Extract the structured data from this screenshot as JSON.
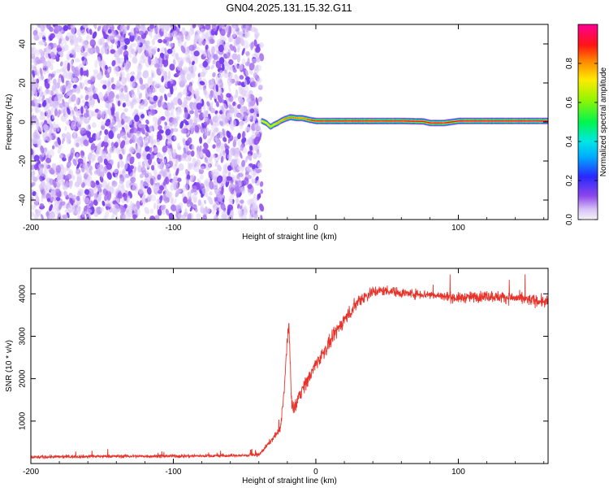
{
  "title": "GN04.2025.131.15.32.G11",
  "colors": {
    "snr_line": "#e8332a",
    "axis": "#000000",
    "scatter_dots": "#7a1fe8"
  },
  "chart_data": [
    {
      "type": "heatmap",
      "xlabel": "Height of straight line (km)",
      "ylabel": "Frequency (Hz)",
      "xlim": [
        -200,
        163
      ],
      "ylim": [
        -50,
        50
      ],
      "x_ticks": [
        -200,
        -100,
        0,
        100
      ],
      "x_tick_labels": [
        "-200",
        "-100",
        "0",
        "100"
      ],
      "y_ticks": [
        -40,
        -20,
        0,
        20,
        40
      ],
      "y_tick_labels": [
        "-40",
        "-20",
        "0",
        "20",
        "40"
      ],
      "noise_region_x": [
        -200,
        -38
      ],
      "signal_track": {
        "x": [
          -38,
          -35,
          -32,
          -30,
          -27,
          -25,
          -22,
          -18,
          -14,
          -10,
          -7,
          -4,
          0,
          20,
          40,
          60,
          75,
          80,
          90,
          100,
          120,
          140,
          163
        ],
        "freq": [
          0.5,
          -0.5,
          -2.5,
          -1.5,
          -0.5,
          0.5,
          1.5,
          2.5,
          2.0,
          2.0,
          1.5,
          1.0,
          0.5,
          0.5,
          0.5,
          0.5,
          0.3,
          -0.5,
          -0.5,
          0.5,
          0.5,
          0.5,
          0.5
        ],
        "amplitude": [
          0.7,
          0.75,
          0.7,
          0.75,
          0.8,
          0.8,
          0.85,
          0.85,
          0.85,
          0.85,
          0.85,
          0.9,
          0.95,
          0.95,
          0.95,
          0.95,
          0.95,
          0.95,
          0.95,
          0.97,
          0.97,
          0.97,
          0.97
        ]
      },
      "colorbar": {
        "label": "Normalized spectral amplitude",
        "range": [
          0,
          1
        ],
        "ticks": [
          0.0,
          0.2,
          0.4,
          0.6,
          0.8
        ],
        "tick_labels": [
          "0.0",
          "0.2",
          "0.4",
          "0.6",
          "0.8"
        ]
      }
    },
    {
      "type": "line",
      "xlabel": "Height of straight line (km)",
      "ylabel": "SNR (10 * v/v)",
      "xlim": [
        -200,
        163
      ],
      "ylim": [
        0,
        4600
      ],
      "x_ticks": [
        -200,
        -100,
        0,
        100
      ],
      "x_tick_labels": [
        "-200",
        "-100",
        "0",
        "100"
      ],
      "y_ticks": [
        1000,
        2000,
        3000,
        4000
      ],
      "y_tick_labels": [
        "1000",
        "2000",
        "3000",
        "4000"
      ],
      "series": [
        {
          "x": [
            -200,
            -150,
            -100,
            -60,
            -40,
            -25,
            -22,
            -20,
            -19,
            -18,
            -17,
            -15,
            -12,
            -8,
            -5,
            0,
            5,
            10,
            15,
            20,
            25,
            30,
            40,
            50,
            60,
            80,
            100,
            120,
            140,
            163
          ],
          "values": [
            150,
            170,
            175,
            185,
            200,
            800,
            1800,
            3000,
            3200,
            2500,
            1400,
            1300,
            1600,
            1850,
            2000,
            2350,
            2600,
            2850,
            3150,
            3400,
            3600,
            3850,
            4050,
            4080,
            4020,
            3980,
            3900,
            3950,
            3900,
            3800
          ],
          "noise_amplitude": [
            70,
            70,
            70,
            70,
            70,
            150,
            300,
            250,
            250,
            300,
            300,
            300,
            300,
            300,
            300,
            300,
            300,
            300,
            300,
            300,
            300,
            300,
            250,
            200,
            200,
            200,
            220,
            240,
            240,
            250
          ]
        }
      ]
    }
  ]
}
